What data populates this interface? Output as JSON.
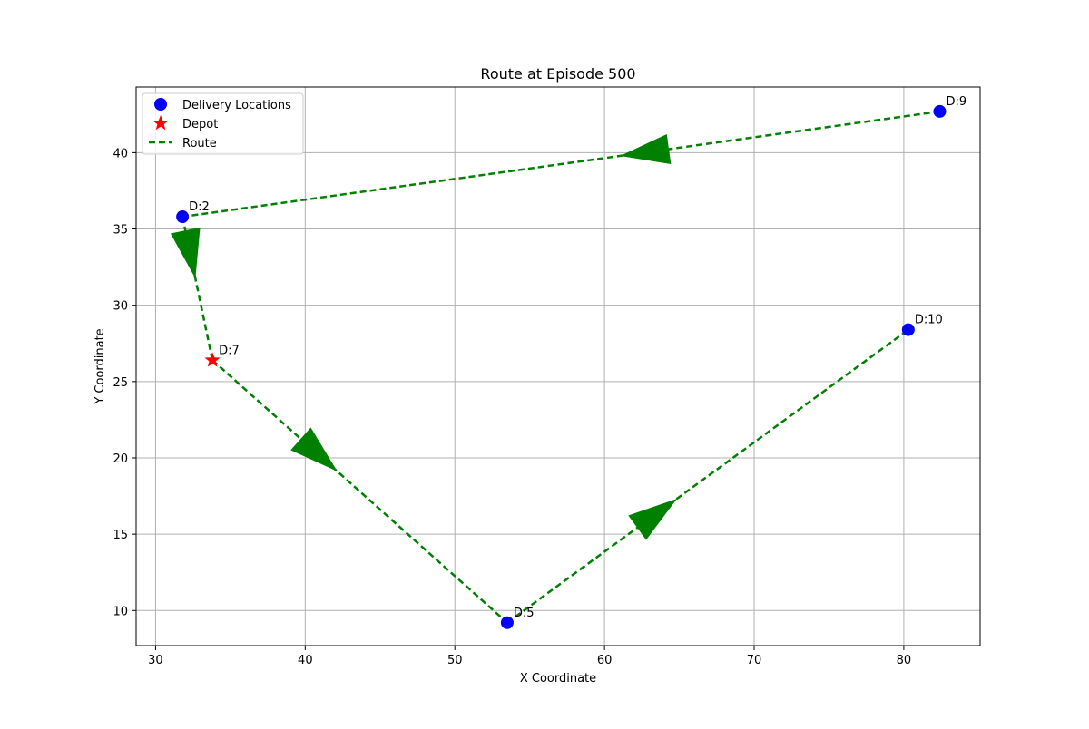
{
  "chart_data": {
    "type": "scatter",
    "title": "Route at Episode 500",
    "xlabel": "X Coordinate",
    "ylabel": "Y Coordinate",
    "xlim": [
      28.7,
      85.1
    ],
    "ylim": [
      7.7,
      44.3
    ],
    "xticks": [
      30,
      40,
      50,
      60,
      70,
      80
    ],
    "yticks": [
      10,
      15,
      20,
      25,
      30,
      35,
      40
    ],
    "grid": true,
    "legend_position": "top-left",
    "legend": [
      {
        "label": "Delivery Locations",
        "marker": "circle",
        "color": "#0000ff"
      },
      {
        "label": "Depot",
        "marker": "star",
        "color": "#ff0000"
      },
      {
        "label": "Route",
        "marker": "dashed-line",
        "color": "#008000"
      }
    ],
    "depot": {
      "label": "D:7",
      "x": 33.8,
      "y": 26.4,
      "color": "#ff0000"
    },
    "delivery_locations": [
      {
        "label": "D:2",
        "x": 31.8,
        "y": 35.8
      },
      {
        "label": "D:9",
        "x": 82.4,
        "y": 42.7
      },
      {
        "label": "D:10",
        "x": 80.3,
        "y": 28.4
      },
      {
        "label": "D:5",
        "x": 53.5,
        "y": 9.2
      }
    ],
    "route": [
      {
        "x": 82.4,
        "y": 42.7
      },
      {
        "x": 31.8,
        "y": 35.8
      },
      {
        "x": 33.8,
        "y": 26.4
      },
      {
        "x": 53.5,
        "y": 9.2
      },
      {
        "x": 80.3,
        "y": 28.4
      }
    ],
    "colors": {
      "delivery": "#0000ff",
      "depot": "#ff0000",
      "route": "#008000",
      "grid": "#b0b0b0"
    }
  }
}
